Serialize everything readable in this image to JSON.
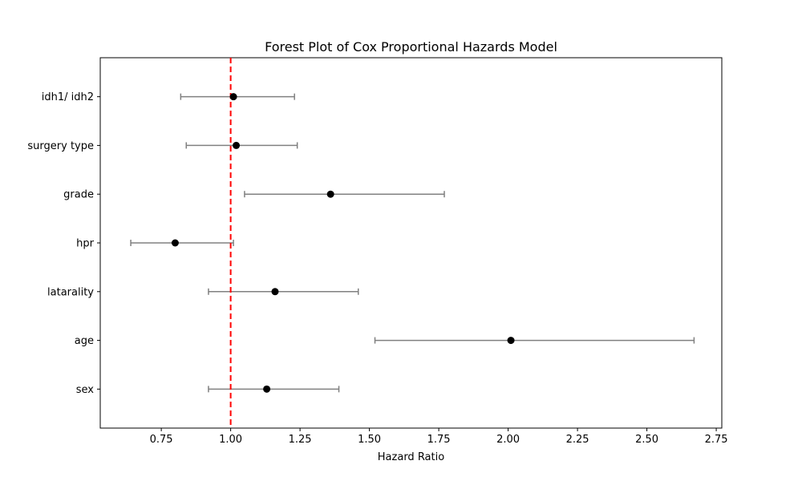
{
  "chart_data": {
    "type": "forest",
    "title": "Forest Plot of Cox Proportional Hazards Model",
    "xlabel": "Hazard Ratio",
    "ylabel": "",
    "xlim": [
      0.53,
      2.77
    ],
    "xticks": [
      0.75,
      1.0,
      1.25,
      1.5,
      1.75,
      2.0,
      2.25,
      2.5,
      2.75
    ],
    "xtick_labels": [
      "0.75",
      "1.00",
      "1.25",
      "1.50",
      "1.75",
      "2.00",
      "2.25",
      "2.50",
      "2.75"
    ],
    "reference_line": {
      "value": 1.0,
      "color": "#ff0000",
      "style": "dashed"
    },
    "point_color": "#000000",
    "ci_color": "#808080",
    "grid": false,
    "rows": [
      {
        "label": "idh1/ idh2",
        "hr": 1.01,
        "ci_low": 0.82,
        "ci_high": 1.23
      },
      {
        "label": "surgery type",
        "hr": 1.02,
        "ci_low": 0.84,
        "ci_high": 1.24
      },
      {
        "label": "grade",
        "hr": 1.36,
        "ci_low": 1.05,
        "ci_high": 1.77
      },
      {
        "label": "hpr",
        "hr": 0.8,
        "ci_low": 0.64,
        "ci_high": 1.01
      },
      {
        "label": "latarality",
        "hr": 1.16,
        "ci_low": 0.92,
        "ci_high": 1.46
      },
      {
        "label": "age",
        "hr": 2.01,
        "ci_low": 1.52,
        "ci_high": 2.67
      },
      {
        "label": "sex",
        "hr": 1.13,
        "ci_low": 0.92,
        "ci_high": 1.39
      }
    ]
  }
}
